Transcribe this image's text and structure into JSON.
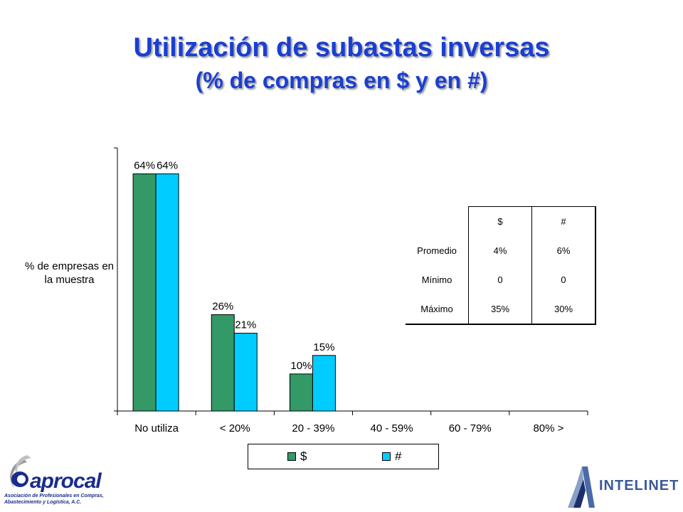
{
  "title": "Utilización de subastas inversas",
  "subtitle": "(% de compras en $ y en #)",
  "chart_data": {
    "type": "bar",
    "ylabel": "% de empresas en la muestra",
    "categories": [
      "No utiliza",
      "< 20%",
      "20 - 39%",
      "40 - 59%",
      "60 - 79%",
      "80% >"
    ],
    "series": [
      {
        "name": "$",
        "values": [
          64,
          26,
          10,
          0,
          0,
          0
        ],
        "labels": [
          "64%",
          "26%",
          "10%",
          "",
          "",
          ""
        ]
      },
      {
        "name": "#",
        "values": [
          64,
          21,
          15,
          0,
          0,
          0
        ],
        "labels": [
          "64%",
          "21%",
          "15%",
          "",
          "",
          ""
        ]
      }
    ],
    "ylim": [
      0,
      71
    ],
    "grid": false,
    "legend": "bottom",
    "colors": [
      "#339966",
      "#00ccff"
    ]
  },
  "stats_table": {
    "headers": [
      "",
      "$",
      "#"
    ],
    "rows": [
      {
        "label": "Promedio",
        "values": [
          "4%",
          "6%"
        ]
      },
      {
        "label": "Mínimo",
        "values": [
          "0",
          "0"
        ]
      },
      {
        "label": "Máximo",
        "values": [
          "35%",
          "30%"
        ]
      }
    ]
  },
  "logos": {
    "left_name": "aprocal",
    "left_subtitle": "Asociación de Profesionales en Compras, Abastecimiento y Logística, A.C.",
    "right_name": "INTELINET"
  }
}
